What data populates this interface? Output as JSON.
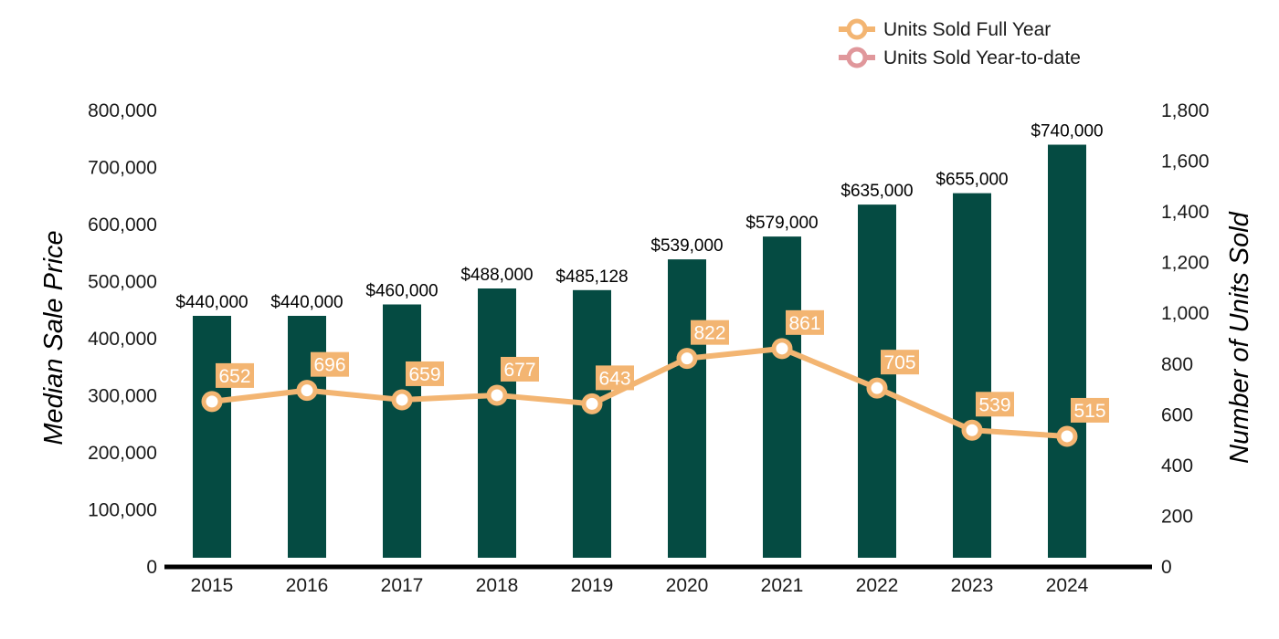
{
  "chart_data": {
    "type": "bar",
    "categories": [
      "2015",
      "2016",
      "2017",
      "2018",
      "2019",
      "2020",
      "2021",
      "2022",
      "2023",
      "2024"
    ],
    "series": [
      {
        "name": "",
        "axis": "left",
        "type": "bar",
        "color": "#054b42",
        "values": [
          440000,
          440000,
          460000,
          488000,
          485128,
          539000,
          579000,
          635000,
          655000,
          740000
        ],
        "labels": [
          "$440,000",
          "$440,000",
          "$460,000",
          "$488,000",
          "$485,128",
          "$539,000",
          "$579,000",
          "$635,000",
          "$655,000",
          "$740,000"
        ]
      },
      {
        "name": "Units Sold Full Year",
        "axis": "right",
        "type": "line",
        "color": "#f3b572",
        "values": [
          652,
          696,
          659,
          677,
          643,
          822,
          861,
          705,
          539,
          515
        ],
        "labels": [
          "652",
          "696",
          "659",
          "677",
          "643",
          "822",
          "861",
          "705",
          "539",
          "515"
        ]
      }
    ],
    "legend": [
      {
        "label": "Units Sold Full Year",
        "color": "#f3b572"
      },
      {
        "label": "Units Sold Year-to-date",
        "color": "#e0979b"
      }
    ],
    "legend_position": "top-right",
    "ylabel": "Median Sale Price",
    "y2label": "Number of Units Sold",
    "ylim": [
      0,
      800000
    ],
    "y2lim": [
      0,
      1800
    ],
    "yticks": [
      "0",
      "100,000",
      "200,000",
      "300,000",
      "400,000",
      "500,000",
      "600,000",
      "700,000",
      "800,000"
    ],
    "y2ticks": [
      "0",
      "200",
      "400",
      "600",
      "800",
      "1,000",
      "1,200",
      "1,400",
      "1,600",
      "1,800"
    ],
    "grid": false
  }
}
